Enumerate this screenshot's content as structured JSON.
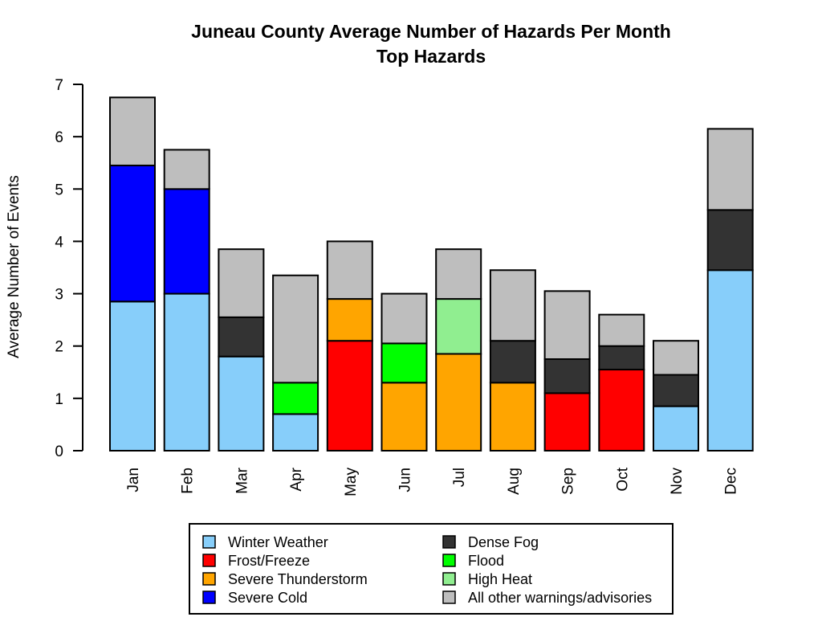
{
  "chart_data": {
    "type": "bar",
    "stacked": true,
    "title": "Juneau County Average Number of Hazards Per Month",
    "subtitle": "Top Hazards",
    "xlabel": "",
    "ylabel": "Average Number of Events",
    "ylim": [
      0,
      7
    ],
    "yticks": [
      0,
      1,
      2,
      3,
      4,
      5,
      6,
      7
    ],
    "categories": [
      "Jan",
      "Feb",
      "Mar",
      "Apr",
      "May",
      "Jun",
      "Jul",
      "Aug",
      "Sep",
      "Oct",
      "Nov",
      "Dec"
    ],
    "segments": [
      [
        {
          "hazard": "Winter Weather",
          "value": 2.85
        },
        {
          "hazard": "Severe Cold",
          "value": 2.6
        },
        {
          "hazard": "All other warnings/advisories",
          "value": 1.3
        }
      ],
      [
        {
          "hazard": "Winter Weather",
          "value": 3.0
        },
        {
          "hazard": "Severe Cold",
          "value": 2.0
        },
        {
          "hazard": "All other warnings/advisories",
          "value": 0.75
        }
      ],
      [
        {
          "hazard": "Winter Weather",
          "value": 1.8
        },
        {
          "hazard": "Dense Fog",
          "value": 0.75
        },
        {
          "hazard": "All other warnings/advisories",
          "value": 1.3
        }
      ],
      [
        {
          "hazard": "Winter Weather",
          "value": 0.7
        },
        {
          "hazard": "Flood",
          "value": 0.6
        },
        {
          "hazard": "All other warnings/advisories",
          "value": 2.05
        }
      ],
      [
        {
          "hazard": "Frost/Freeze",
          "value": 2.1
        },
        {
          "hazard": "Severe Thunderstorm",
          "value": 0.8
        },
        {
          "hazard": "All other warnings/advisories",
          "value": 1.1
        }
      ],
      [
        {
          "hazard": "Severe Thunderstorm",
          "value": 1.3
        },
        {
          "hazard": "Flood",
          "value": 0.75
        },
        {
          "hazard": "All other warnings/advisories",
          "value": 0.95
        }
      ],
      [
        {
          "hazard": "Severe Thunderstorm",
          "value": 1.85
        },
        {
          "hazard": "High Heat",
          "value": 1.05
        },
        {
          "hazard": "All other warnings/advisories",
          "value": 0.95
        }
      ],
      [
        {
          "hazard": "Severe Thunderstorm",
          "value": 1.3
        },
        {
          "hazard": "Dense Fog",
          "value": 0.8
        },
        {
          "hazard": "All other warnings/advisories",
          "value": 1.35
        }
      ],
      [
        {
          "hazard": "Frost/Freeze",
          "value": 1.1
        },
        {
          "hazard": "Dense Fog",
          "value": 0.65
        },
        {
          "hazard": "All other warnings/advisories",
          "value": 1.3
        }
      ],
      [
        {
          "hazard": "Frost/Freeze",
          "value": 1.55
        },
        {
          "hazard": "Dense Fog",
          "value": 0.45
        },
        {
          "hazard": "All other warnings/advisories",
          "value": 0.6
        }
      ],
      [
        {
          "hazard": "Winter Weather",
          "value": 0.85
        },
        {
          "hazard": "Dense Fog",
          "value": 0.6
        },
        {
          "hazard": "All other warnings/advisories",
          "value": 0.65
        }
      ],
      [
        {
          "hazard": "Winter Weather",
          "value": 3.45
        },
        {
          "hazard": "Dense Fog",
          "value": 1.15
        },
        {
          "hazard": "All other warnings/advisories",
          "value": 1.55
        }
      ]
    ],
    "legend": {
      "placement": "bottom",
      "entries": [
        {
          "label": "Winter Weather",
          "color": "#87CEFA"
        },
        {
          "label": "Frost/Freeze",
          "color": "#FF0000"
        },
        {
          "label": "Severe Thunderstorm",
          "color": "#FFA500"
        },
        {
          "label": "Severe Cold",
          "color": "#0000FF"
        },
        {
          "label": "Dense Fog",
          "color": "#333333"
        },
        {
          "label": "Flood",
          "color": "#00FF00"
        },
        {
          "label": "High Heat",
          "color": "#90EE90"
        },
        {
          "label": "All other warnings/advisories",
          "color": "#BEBEBE"
        }
      ]
    }
  }
}
